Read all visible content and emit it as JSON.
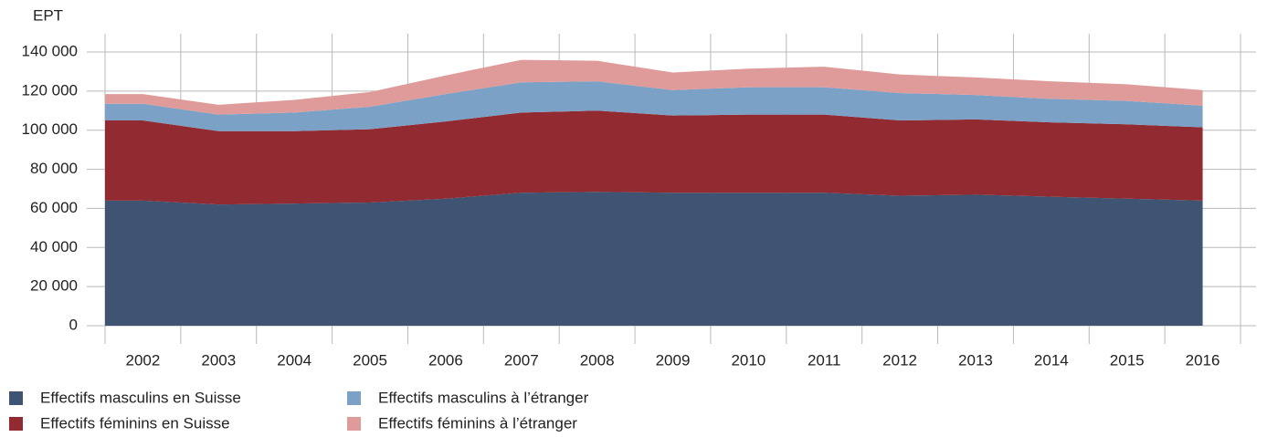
{
  "chart_data": {
    "type": "stacked_area",
    "y_label": "EPT",
    "categories": [
      "2002",
      "2003",
      "2004",
      "2005",
      "2006",
      "2007",
      "2008",
      "2009",
      "2010",
      "2011",
      "2012",
      "2013",
      "2014",
      "2015",
      "2016"
    ],
    "series": [
      {
        "name": "Effectifs masculins en Suisse",
        "color": "#3e5472",
        "values": [
          64000,
          62000,
          62500,
          63000,
          65000,
          68000,
          68500,
          68000,
          68000,
          68000,
          66500,
          67000,
          66000,
          65000,
          64000
        ]
      },
      {
        "name": "Effectifs féminins en Suisse",
        "color": "#922a31",
        "values": [
          41000,
          37500,
          37000,
          37500,
          39500,
          41000,
          41500,
          39500,
          40000,
          40000,
          38500,
          38500,
          38000,
          38000,
          37500
        ]
      },
      {
        "name": "Effectifs masculins à l’étranger",
        "color": "#7ba2c6",
        "values": [
          8500,
          8500,
          9500,
          11500,
          14000,
          15500,
          15000,
          13000,
          14000,
          14000,
          14000,
          12500,
          12000,
          12000,
          11000
        ]
      },
      {
        "name": "Effectifs féminins à l’étranger",
        "color": "#df9b9a",
        "values": [
          5000,
          5000,
          6500,
          7500,
          9500,
          11500,
          10500,
          9000,
          9500,
          10500,
          9500,
          9000,
          9000,
          8500,
          8000
        ]
      }
    ],
    "ylim": [
      0,
      140000
    ],
    "yticks": [
      0,
      {
        "value": 20000,
        "label": "20 000"
      },
      {
        "value": 40000,
        "label": "40 000"
      },
      {
        "value": 60000,
        "label": "60 000"
      },
      {
        "value": 80000,
        "label": "80 000"
      },
      {
        "value": 100000,
        "label": "100 000"
      },
      {
        "value": 120000,
        "label": "120 000"
      },
      {
        "value": 140000,
        "label": "140 000"
      }
    ],
    "grid": true
  }
}
